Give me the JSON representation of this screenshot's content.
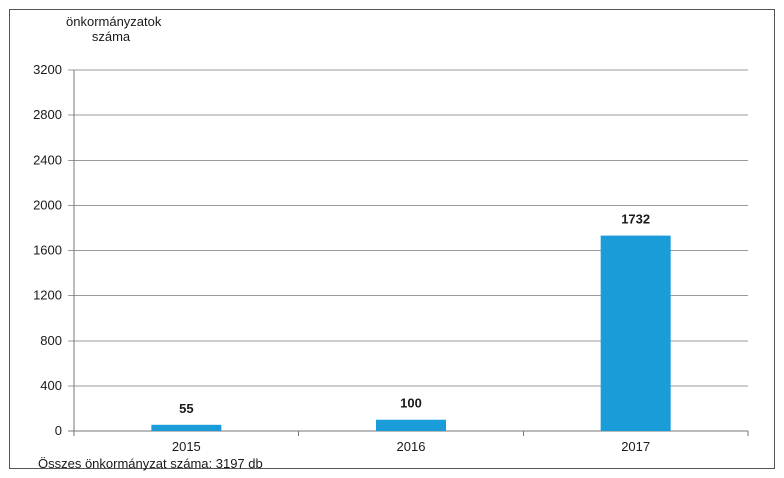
{
  "chart_data": {
    "type": "bar",
    "categories": [
      "2015",
      "2016",
      "2017"
    ],
    "values": [
      55,
      100,
      1732
    ],
    "data_labels": [
      "55",
      "100",
      "1732"
    ],
    "ylabel": "önkormányzatok száma",
    "ylim": [
      0,
      3200
    ],
    "yticks": [
      0,
      400,
      800,
      1200,
      1600,
      2000,
      2400,
      2800,
      3200
    ],
    "grid": true,
    "bar_color": "#1a9cd8",
    "note": "Összes önkormányzat száma: 3197 db"
  }
}
